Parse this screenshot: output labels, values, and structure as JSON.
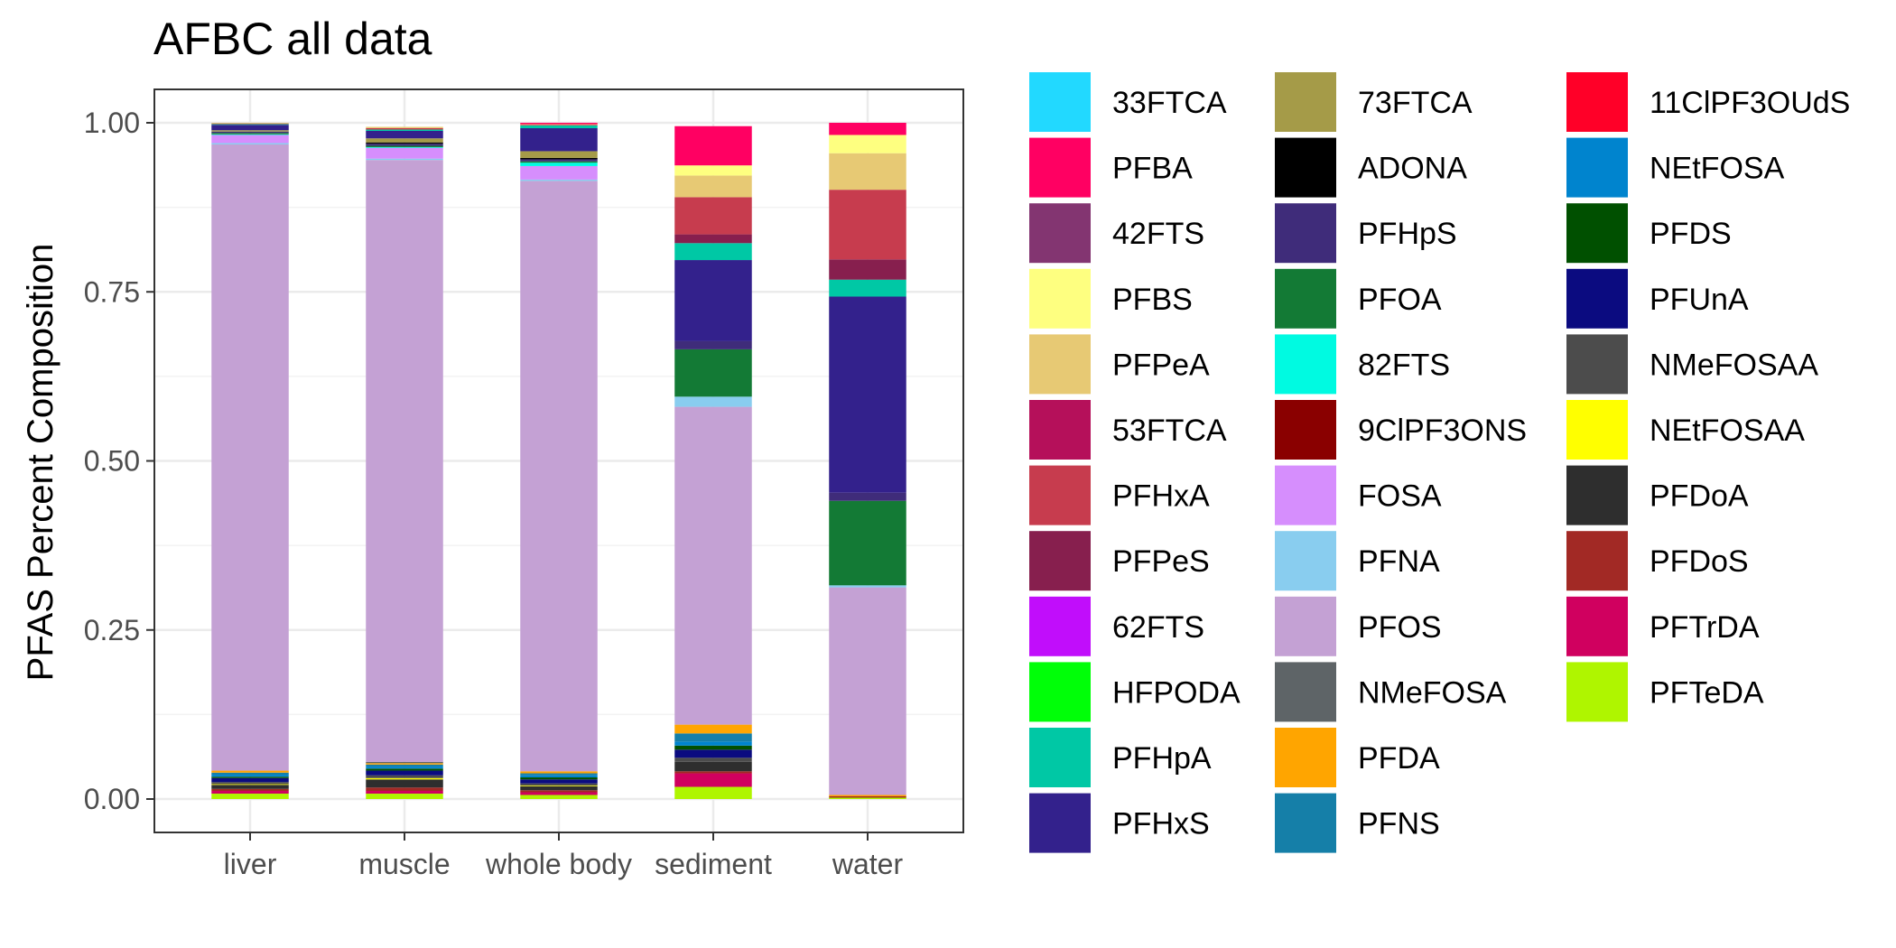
{
  "chart_data": {
    "type": "bar",
    "stacked": true,
    "title": "AFBC all data",
    "xlabel": "",
    "ylabel": "PFAS Percent Composition",
    "ylim": [
      0,
      1.05
    ],
    "yticks": [
      0,
      0.25,
      0.5,
      0.75,
      1.0
    ],
    "ytick_labels": [
      "0.00",
      "0.25",
      "0.50",
      "0.75",
      "1.00"
    ],
    "grid": true,
    "legend_position": "right",
    "categories": [
      "liver",
      "muscle",
      "whole body",
      "sediment",
      "water"
    ],
    "series": [
      {
        "name": "33FTCA",
        "color": "#22D9FF",
        "values": [
          0,
          0,
          0,
          0,
          0
        ]
      },
      {
        "name": "PFBA",
        "color": "#FF0062",
        "values": [
          0,
          0,
          0.002,
          0.058,
          0.018
        ]
      },
      {
        "name": "42FTS",
        "color": "#833571",
        "values": [
          0,
          0,
          0,
          0,
          0
        ]
      },
      {
        "name": "PFBS",
        "color": "#FEFF80",
        "values": [
          0,
          0,
          0,
          0.015,
          0.027
        ]
      },
      {
        "name": "PFPeA",
        "color": "#E7C974",
        "values": [
          0.001,
          0.002,
          0.001,
          0.032,
          0.054
        ]
      },
      {
        "name": "53FTCA",
        "color": "#B5105A",
        "values": [
          0,
          0,
          0,
          0,
          0
        ]
      },
      {
        "name": "PFHxA",
        "color": "#C73C4E",
        "values": [
          0.001,
          0.002,
          0.001,
          0.055,
          0.103
        ]
      },
      {
        "name": "PFPeS",
        "color": "#871F4E",
        "values": [
          0,
          0,
          0,
          0.013,
          0.03
        ]
      },
      {
        "name": "62FTS",
        "color": "#C10DFB",
        "values": [
          0,
          0,
          0,
          0,
          0
        ]
      },
      {
        "name": "HFPODA",
        "color": "#00FF08",
        "values": [
          0,
          0,
          0,
          0,
          0
        ]
      },
      {
        "name": "PFHpA",
        "color": "#00C8A5",
        "values": [
          0.001,
          0.002,
          0.004,
          0.025,
          0.025
        ]
      },
      {
        "name": "PFHxS",
        "color": "#33218C",
        "values": [
          0.008,
          0.011,
          0.034,
          0.12,
          0.29
        ]
      },
      {
        "name": "73FTCA",
        "color": "#A59B48",
        "values": [
          0.002,
          0.006,
          0.01,
          0,
          0
        ]
      },
      {
        "name": "ADONA",
        "color": "#000000",
        "values": [
          0,
          0.002,
          0.002,
          0,
          0
        ]
      },
      {
        "name": "PFHpS",
        "color": "#3F2C7A",
        "values": [
          0.002,
          0.003,
          0.003,
          0.012,
          0.012
        ]
      },
      {
        "name": "PFOA",
        "color": "#137A35",
        "values": [
          0.002,
          0.002,
          0.002,
          0.07,
          0.125
        ]
      },
      {
        "name": "82FTS",
        "color": "#00FAE1",
        "values": [
          0.001,
          0.001,
          0.005,
          0,
          0
        ]
      },
      {
        "name": "9ClPF3ONS",
        "color": "#8A0000",
        "values": [
          0,
          0,
          0,
          0,
          0
        ]
      },
      {
        "name": "FOSA",
        "color": "#D68EFD",
        "values": [
          0.012,
          0.016,
          0.02,
          0,
          0
        ]
      },
      {
        "name": "PFNA",
        "color": "#89CDEF",
        "values": [
          0.002,
          0.002,
          0.002,
          0.015,
          0.003
        ]
      },
      {
        "name": "PFOS",
        "color": "#C4A1D4",
        "values": [
          0.926,
          0.89,
          0.873,
          0.47,
          0.307
        ]
      },
      {
        "name": "NMeFOSA",
        "color": "#5E6467",
        "values": [
          0,
          0.002,
          0,
          0,
          0
        ]
      },
      {
        "name": "PFDA",
        "color": "#FFA500",
        "values": [
          0.003,
          0.002,
          0.003,
          0.013,
          0.002
        ]
      },
      {
        "name": "PFNS",
        "color": "#157FA8",
        "values": [
          0.003,
          0.003,
          0.003,
          0.012,
          0
        ]
      },
      {
        "name": "11ClPF3OUdS",
        "color": "#FF0028",
        "values": [
          0,
          0,
          0,
          0,
          0
        ]
      },
      {
        "name": "NEtFOSA",
        "color": "#0084CE",
        "values": [
          0.003,
          0.003,
          0.003,
          0.006,
          0
        ]
      },
      {
        "name": "PFDS",
        "color": "#005000",
        "values": [
          0.002,
          0.003,
          0.003,
          0.006,
          0
        ]
      },
      {
        "name": "PFUnA",
        "color": "#0B0B80",
        "values": [
          0.006,
          0.007,
          0.006,
          0.012,
          0
        ]
      },
      {
        "name": "NMeFOSAA",
        "color": "#4C4C4C",
        "values": [
          0.003,
          0.004,
          0.003,
          0.006,
          0
        ]
      },
      {
        "name": "NEtFOSAA",
        "color": "#FFFF00",
        "values": [
          0.001,
          0.002,
          0.001,
          0,
          0
        ]
      },
      {
        "name": "PFDoA",
        "color": "#2E2E2E",
        "values": [
          0.006,
          0.012,
          0.006,
          0.014,
          0
        ]
      },
      {
        "name": "PFDoS",
        "color": "#A22925",
        "values": [
          0.003,
          0.005,
          0.003,
          0.003,
          0.002
        ]
      },
      {
        "name": "PFTrDA",
        "color": "#D0005F",
        "values": [
          0.004,
          0.004,
          0.004,
          0.02,
          0
        ]
      },
      {
        "name": "PFTeDA",
        "color": "#AFF500",
        "values": [
          0.008,
          0.008,
          0.006,
          0.018,
          0.002
        ]
      }
    ]
  }
}
